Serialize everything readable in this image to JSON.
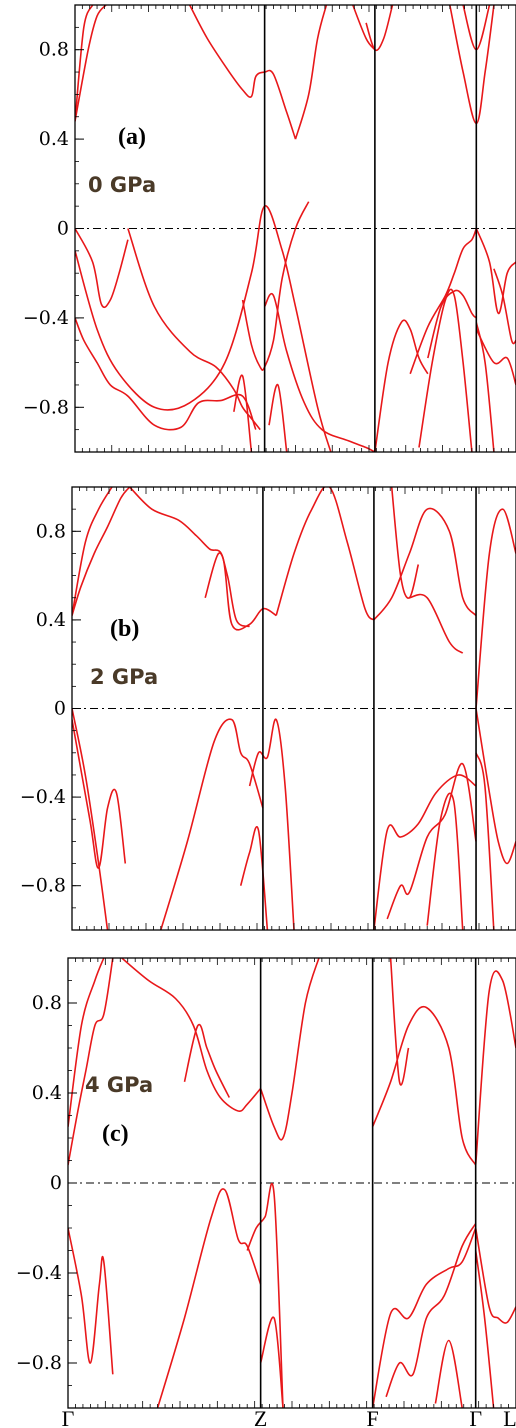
{
  "chart_data": [
    {
      "type": "line",
      "panel_label": "(a)",
      "pressure_label": "0 GPa",
      "ylim": [
        -1.0,
        1.0
      ],
      "yticks": [
        "0.8",
        "0.4",
        "0",
        "−0.4",
        "−0.8"
      ],
      "k_separators": [
        0.43,
        0.68,
        0.91
      ],
      "fermi_level": 0,
      "series": [
        {
          "x": [
            0.0,
            0.03,
            0.05,
            0.07
          ],
          "y": [
            0.48,
            0.8,
            0.95,
            1.0
          ]
        },
        {
          "x": [
            0.0,
            0.02,
            0.04
          ],
          "y": [
            0.48,
            0.9,
            1.0
          ]
        },
        {
          "x": [
            0.26,
            0.3,
            0.35,
            0.38,
            0.4,
            0.41,
            0.43,
            0.45,
            0.48,
            0.5
          ],
          "y": [
            1.0,
            0.85,
            0.7,
            0.62,
            0.59,
            0.68,
            0.7,
            0.69,
            0.52,
            0.4
          ]
        },
        {
          "x": [
            0.5,
            0.53,
            0.55,
            0.57
          ],
          "y": [
            0.4,
            0.6,
            0.85,
            1.0
          ]
        },
        {
          "x": [
            0.66,
            0.68,
            0.7,
            0.72
          ],
          "y": [
            0.92,
            0.8,
            0.85,
            1.0
          ]
        },
        {
          "x": [
            0.63,
            0.66,
            0.68
          ],
          "y": [
            1.0,
            0.85,
            0.8
          ]
        },
        {
          "x": [
            0.85,
            0.88,
            0.91,
            0.93,
            0.95
          ],
          "y": [
            1.0,
            0.7,
            0.47,
            0.7,
            1.0
          ]
        },
        {
          "x": [
            0.88,
            0.91,
            0.94
          ],
          "y": [
            1.0,
            0.8,
            1.0
          ]
        },
        {
          "x": [
            0.0,
            0.04,
            0.06,
            0.08,
            0.1,
            0.12
          ],
          "y": [
            0.0,
            -0.15,
            -0.34,
            -0.32,
            -0.2,
            -0.05
          ]
        },
        {
          "x": [
            0.0,
            0.05,
            0.1,
            0.18,
            0.26,
            0.34,
            0.4,
            0.43,
            0.47,
            0.5,
            0.55,
            0.58
          ],
          "y": [
            -0.1,
            -0.45,
            -0.65,
            -0.8,
            -0.78,
            -0.6,
            -0.2,
            0.1,
            -0.1,
            -0.35,
            -0.8,
            -1.0
          ]
        },
        {
          "x": [
            0.12,
            0.18,
            0.26,
            0.32,
            0.36,
            0.38,
            0.4,
            0.42
          ],
          "y": [
            0.0,
            -0.35,
            -0.55,
            -0.62,
            -0.72,
            -0.8,
            -0.85,
            -0.9
          ]
        },
        {
          "x": [
            0.0,
            0.02,
            0.05,
            0.08,
            0.12,
            0.18,
            0.24,
            0.28,
            0.33,
            0.38,
            0.41
          ],
          "y": [
            -0.4,
            -0.5,
            -0.6,
            -0.7,
            -0.75,
            -0.88,
            -0.89,
            -0.78,
            -0.77,
            -0.75,
            -0.9
          ]
        },
        {
          "x": [
            0.38,
            0.4,
            0.42,
            0.43,
            0.45,
            0.47,
            0.5,
            0.53
          ],
          "y": [
            -0.32,
            -0.52,
            -0.62,
            -0.62,
            -0.5,
            -0.22,
            0.0,
            0.12
          ]
        },
        {
          "x": [
            0.43,
            0.45,
            0.48,
            0.52,
            0.56,
            0.62,
            0.66,
            0.68
          ],
          "y": [
            -0.35,
            -0.3,
            -0.55,
            -0.78,
            -0.9,
            -0.95,
            -0.98,
            -1.0
          ]
        },
        {
          "x": [
            0.36,
            0.38,
            0.4
          ],
          "y": [
            -0.82,
            -0.66,
            -1.0
          ]
        },
        {
          "x": [
            0.44,
            0.46,
            0.48
          ],
          "y": [
            -0.88,
            -0.7,
            -1.0
          ]
        },
        {
          "x": [
            0.68,
            0.71,
            0.74,
            0.76,
            0.78,
            0.8
          ],
          "y": [
            -1.0,
            -0.6,
            -0.42,
            -0.45,
            -0.58,
            -0.65
          ]
        },
        {
          "x": [
            0.76,
            0.8,
            0.84,
            0.86,
            0.88,
            0.9,
            0.91
          ],
          "y": [
            -0.65,
            -0.44,
            -0.3,
            -0.2,
            -0.09,
            -0.05,
            0.0
          ]
        },
        {
          "x": [
            0.8,
            0.83,
            0.86,
            0.88,
            0.9,
            0.91
          ],
          "y": [
            -0.58,
            -0.35,
            -0.28,
            -0.3,
            -0.38,
            -0.4
          ]
        },
        {
          "x": [
            0.78,
            0.81,
            0.84,
            0.86,
            0.88,
            0.9
          ],
          "y": [
            -0.98,
            -0.6,
            -0.32,
            -0.3,
            -0.6,
            -1.0
          ]
        },
        {
          "x": [
            0.91,
            0.94,
            0.96,
            0.98,
            1.0
          ],
          "y": [
            0.0,
            -0.15,
            -0.38,
            -0.2,
            -0.15
          ]
        },
        {
          "x": [
            0.91,
            0.95,
            0.98,
            1.0
          ],
          "y": [
            -0.45,
            -0.6,
            -0.58,
            -0.7
          ]
        },
        {
          "x": [
            0.95,
            0.97,
            0.99,
            1.0
          ],
          "y": [
            -0.18,
            -0.3,
            -0.5,
            -0.5
          ]
        },
        {
          "x": [
            0.91,
            0.93,
            0.95
          ],
          "y": [
            -0.42,
            -0.6,
            -1.0
          ]
        }
      ]
    },
    {
      "type": "line",
      "panel_label": "(b)",
      "pressure_label": "2 GPa",
      "ylim": [
        -1.0,
        1.0
      ],
      "yticks": [
        "0.8",
        "0.4",
        "0",
        "−0.4",
        "−0.8"
      ],
      "k_separators": [
        0.43,
        0.68,
        0.91
      ],
      "fermi_level": 0,
      "series": [
        {
          "x": [
            0.0,
            0.02,
            0.05,
            0.08,
            0.11,
            0.13
          ],
          "y": [
            0.42,
            0.55,
            0.7,
            0.82,
            0.95,
            1.0
          ]
        },
        {
          "x": [
            0.0,
            0.03,
            0.06,
            0.09
          ],
          "y": [
            0.42,
            0.75,
            0.9,
            1.0
          ]
        },
        {
          "x": [
            0.13,
            0.18,
            0.24,
            0.28,
            0.31,
            0.34,
            0.36,
            0.4,
            0.43,
            0.46
          ],
          "y": [
            1.0,
            0.9,
            0.85,
            0.78,
            0.72,
            0.68,
            0.38,
            0.38,
            0.45,
            0.42
          ]
        },
        {
          "x": [
            0.3,
            0.33,
            0.35,
            0.37,
            0.4
          ],
          "y": [
            0.5,
            0.7,
            0.6,
            0.4,
            0.37
          ]
        },
        {
          "x": [
            0.46,
            0.5,
            0.54,
            0.58,
            0.62,
            0.66,
            0.68
          ],
          "y": [
            0.42,
            0.7,
            0.9,
            1.0,
            0.75,
            0.45,
            0.4
          ]
        },
        {
          "x": [
            0.68,
            0.72,
            0.76,
            0.8,
            0.85,
            0.88,
            0.91
          ],
          "y": [
            0.4,
            0.5,
            0.7,
            0.9,
            0.8,
            0.5,
            0.42
          ]
        },
        {
          "x": [
            0.72,
            0.74,
            0.76,
            0.78
          ],
          "y": [
            1.0,
            0.6,
            0.5,
            0.65
          ]
        },
        {
          "x": [
            0.76,
            0.8,
            0.85,
            0.88
          ],
          "y": [
            0.5,
            0.5,
            0.3,
            0.25
          ]
        },
        {
          "x": [
            0.91,
            0.94,
            0.97,
            1.0
          ],
          "y": [
            0.0,
            0.7,
            0.9,
            0.7
          ]
        },
        {
          "x": [
            0.0,
            0.03,
            0.06,
            0.08
          ],
          "y": [
            0.0,
            -0.3,
            -0.7,
            -1.0
          ]
        },
        {
          "x": [
            0.0,
            0.04,
            0.06,
            0.08,
            0.1,
            0.12
          ],
          "y": [
            -0.05,
            -0.5,
            -0.72,
            -0.45,
            -0.38,
            -0.7
          ]
        },
        {
          "x": [
            0.2,
            0.26,
            0.32,
            0.36,
            0.38,
            0.4,
            0.43
          ],
          "y": [
            -1.0,
            -0.6,
            -0.15,
            -0.05,
            -0.2,
            -0.25,
            -0.45
          ]
        },
        {
          "x": [
            0.4,
            0.42,
            0.44,
            0.46,
            0.48,
            0.5
          ],
          "y": [
            -0.35,
            -0.2,
            -0.22,
            -0.05,
            -0.35,
            -1.0
          ]
        },
        {
          "x": [
            0.38,
            0.4,
            0.42,
            0.44
          ],
          "y": [
            -0.8,
            -0.65,
            -0.55,
            -1.0
          ]
        },
        {
          "x": [
            0.68,
            0.71,
            0.74,
            0.78,
            0.82,
            0.87,
            0.91
          ],
          "y": [
            -1.0,
            -0.55,
            -0.58,
            -0.52,
            -0.38,
            -0.3,
            -0.35
          ]
        },
        {
          "x": [
            0.71,
            0.74,
            0.76,
            0.8,
            0.84,
            0.88,
            0.91
          ],
          "y": [
            -0.95,
            -0.8,
            -0.83,
            -0.58,
            -0.48,
            -0.25,
            -0.6
          ]
        },
        {
          "x": [
            0.8,
            0.83,
            0.86,
            0.88
          ],
          "y": [
            -0.98,
            -0.5,
            -0.42,
            -1.0
          ]
        },
        {
          "x": [
            0.91,
            0.94,
            0.96,
            0.98,
            1.0
          ],
          "y": [
            0.0,
            -0.38,
            -0.6,
            -0.7,
            -0.6
          ]
        },
        {
          "x": [
            0.91,
            0.93,
            0.95
          ],
          "y": [
            -0.2,
            -0.35,
            -1.0
          ]
        }
      ]
    },
    {
      "type": "line",
      "panel_label": "(c)",
      "pressure_label": "4 GPa",
      "ylim": [
        -1.0,
        1.0
      ],
      "yticks": [
        "0.8",
        "0.4",
        "0",
        "−0.4",
        "−0.8"
      ],
      "k_separators": [
        0.43,
        0.68,
        0.91
      ],
      "fermi_level": 0,
      "xticks": [
        "Γ",
        "Z",
        "F",
        "Γ",
        "L"
      ],
      "series": [
        {
          "x": [
            0.0,
            0.02,
            0.04,
            0.06,
            0.08,
            0.1
          ],
          "y": [
            0.08,
            0.3,
            0.5,
            0.7,
            0.75,
            1.0
          ]
        },
        {
          "x": [
            0.0,
            0.03,
            0.06,
            0.08
          ],
          "y": [
            0.25,
            0.7,
            0.9,
            1.0
          ]
        },
        {
          "x": [
            0.12,
            0.18,
            0.24,
            0.28,
            0.31,
            0.34,
            0.38,
            0.4,
            0.43
          ],
          "y": [
            1.0,
            0.9,
            0.82,
            0.7,
            0.5,
            0.38,
            0.32,
            0.35,
            0.42
          ]
        },
        {
          "x": [
            0.26,
            0.29,
            0.31,
            0.33,
            0.36
          ],
          "y": [
            0.45,
            0.7,
            0.6,
            0.5,
            0.38
          ]
        },
        {
          "x": [
            0.43,
            0.46,
            0.48,
            0.5,
            0.53,
            0.56
          ],
          "y": [
            0.42,
            0.25,
            0.2,
            0.4,
            0.8,
            1.0
          ]
        },
        {
          "x": [
            0.68,
            0.72,
            0.76,
            0.8,
            0.85,
            0.88,
            0.91
          ],
          "y": [
            0.25,
            0.45,
            0.7,
            0.78,
            0.6,
            0.2,
            0.08
          ]
        },
        {
          "x": [
            0.72,
            0.74,
            0.76
          ],
          "y": [
            1.0,
            0.45,
            0.6
          ]
        },
        {
          "x": [
            0.91,
            0.94,
            0.97,
            1.0
          ],
          "y": [
            0.08,
            0.85,
            0.9,
            0.6
          ]
        },
        {
          "x": [
            0.0,
            0.03,
            0.05,
            0.07,
            0.08,
            0.1
          ],
          "y": [
            -0.2,
            -0.5,
            -0.8,
            -0.45,
            -0.35,
            -0.85
          ]
        },
        {
          "x": [
            0.2,
            0.26,
            0.32,
            0.35,
            0.38,
            0.4,
            0.43
          ],
          "y": [
            -1.0,
            -0.6,
            -0.15,
            -0.03,
            -0.25,
            -0.28,
            -0.45
          ]
        },
        {
          "x": [
            0.4,
            0.42,
            0.44,
            0.46,
            0.48
          ],
          "y": [
            -0.3,
            -0.2,
            -0.15,
            -0.05,
            -1.0
          ]
        },
        {
          "x": [
            0.43,
            0.46,
            0.48
          ],
          "y": [
            -0.8,
            -0.6,
            -1.0
          ]
        },
        {
          "x": [
            0.68,
            0.72,
            0.76,
            0.8,
            0.85,
            0.88,
            0.91
          ],
          "y": [
            -1.0,
            -0.58,
            -0.6,
            -0.45,
            -0.38,
            -0.35,
            -0.2
          ]
        },
        {
          "x": [
            0.71,
            0.74,
            0.77,
            0.8,
            0.84,
            0.88,
            0.91
          ],
          "y": [
            -0.95,
            -0.8,
            -0.85,
            -0.6,
            -0.5,
            -0.28,
            -0.18
          ]
        },
        {
          "x": [
            0.82,
            0.85,
            0.88
          ],
          "y": [
            -0.98,
            -0.7,
            -1.0
          ]
        },
        {
          "x": [
            0.91,
            0.94,
            0.96,
            0.98,
            1.0
          ],
          "y": [
            -0.2,
            -0.55,
            -0.6,
            -0.62,
            -0.55
          ]
        },
        {
          "x": [
            0.91,
            0.93,
            0.95
          ],
          "y": [
            -0.3,
            -0.6,
            -1.0
          ]
        }
      ]
    }
  ]
}
